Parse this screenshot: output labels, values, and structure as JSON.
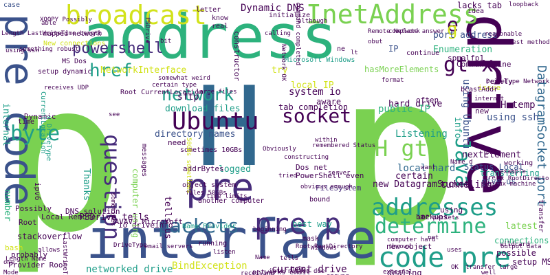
{
  "colors": {
    "background": "#ffffff",
    "yellow": "#d2e21b",
    "light_green": "#7ad151",
    "green": "#2db27d",
    "teal": "#1f9e89",
    "blue": "#31688e",
    "dark_blue": "#3b528b",
    "purple": "#472d7b",
    "dark_purple": "#440154"
  },
  "words": [
    "p",
    "H",
    "address",
    "drive",
    "interface",
    "pre code",
    "pre",
    "pre p",
    "InetAddress",
    "broadcast",
    "network",
    "Ubuntu",
    "socket",
    "question",
    "determine",
    "addresses",
    "packets",
    "href",
    "gt",
    "x",
    "code pre",
    "H gt",
    "byte",
    "Java",
    "powershell",
    "DatagramSocket port",
    "Dynamic DNS",
    "e",
    "g",
    "IP",
    "lacks tab",
    "port address",
    "Enumeration",
    "hasMoreElements",
    "system io",
    "aware",
    "tab completion",
    "hard drive",
    "local hard",
    "public IP",
    "download files",
    "directory names",
    "Listening",
    "using Ubuntu",
    "H temp",
    "using ssh",
    "nextElement",
    "Status Local",
    "transferring",
    "give us",
    "sftp",
    "NetworkInterface",
    "try",
    "local IP",
    "certain",
    "new DatagramSocket",
    "tunneling",
    "best way",
    "current drive",
    "networked drive",
    "BindException",
    "logged",
    "addrBytes",
    "Dos net",
    "PowerShell even",
    "object system",
    "Name Provider",
    "JAVAVJ Microsoft",
    "PSDrive tells",
    "io driveinfo",
    "number",
    "stackoverflow",
    "bash",
    "Provider Root",
    "Local Remote",
    "DNS solution",
    "Thanks",
    "computer using",
    "setup dynamic",
    "Microsoft Windows",
    "FileSystem",
    "bound",
    "info",
    "using",
    "new object",
    "setup MS",
    "connections will",
    "possible",
    "internal",
    "Dynamic",
    "Root",
    "latest",
    "often",
    "backups",
    "new",
    "really",
    "issue",
    "case",
    "mapped network",
    "New connections",
    "MS Dos",
    "letter",
    "know",
    "real",
    "initialize",
    "idea",
    "Remote Network",
    "Command Line",
    "spmalfp1",
    "continue",
    "messages",
    "sometimes 10GBs",
    "tells us",
    "another computer",
    "time limits",
    "receiving",
    "beginning",
    "networks email",
    "email servers",
    "dealing",
    "need",
    "remembered Status",
    "constructor",
    "complete answer",
    "certain type",
    "large files",
    "somewhat weird",
    "output data",
    "computer hard",
    "transfer large",
    "probably",
    "Name",
    "tried",
    "one",
    "Mode",
    "DriveType Network",
    "constructing",
    "within",
    "bit",
    "working",
    "x RootDirectory",
    "Length Name",
    "LastWriteTime",
    "interrupted due",
    "well",
    "read",
    "example",
    "wildcard",
    "Linux machine",
    "reasonable",
    "best method",
    "format",
    "Obviously",
    "server",
    "running",
    "listen",
    "mask",
    "UDP packets",
    "files 50GBs",
    "50GBs sometimes",
    "ipv6",
    "Possibly",
    "calling",
    "help",
    "loopback",
    "ne",
    "external",
    "see",
    "throws",
    "Windows",
    "uses",
    "although",
    "time",
    "lt",
    "answer",
    "Name d",
    "bcastAddr",
    "internet",
    "allows",
    "x DriveType",
    "DriveType",
    "CurrentLocation",
    "transfer",
    "Root CurrentLocation",
    "sometimes",
    "Network OK",
    "command completed",
    "PSDrive",
    "XOOPY Possibly",
    "Root RootDirectory",
    "Length LastWriteTime Length",
    "something robust",
    "obvious enough",
    "tells",
    "receives UDP",
    "able",
    "net",
    "DNS",
    "OK",
    "obut",
    "want",
    "using ssh",
    "lt",
    "one",
    "note",
    "able"
  ]
}
